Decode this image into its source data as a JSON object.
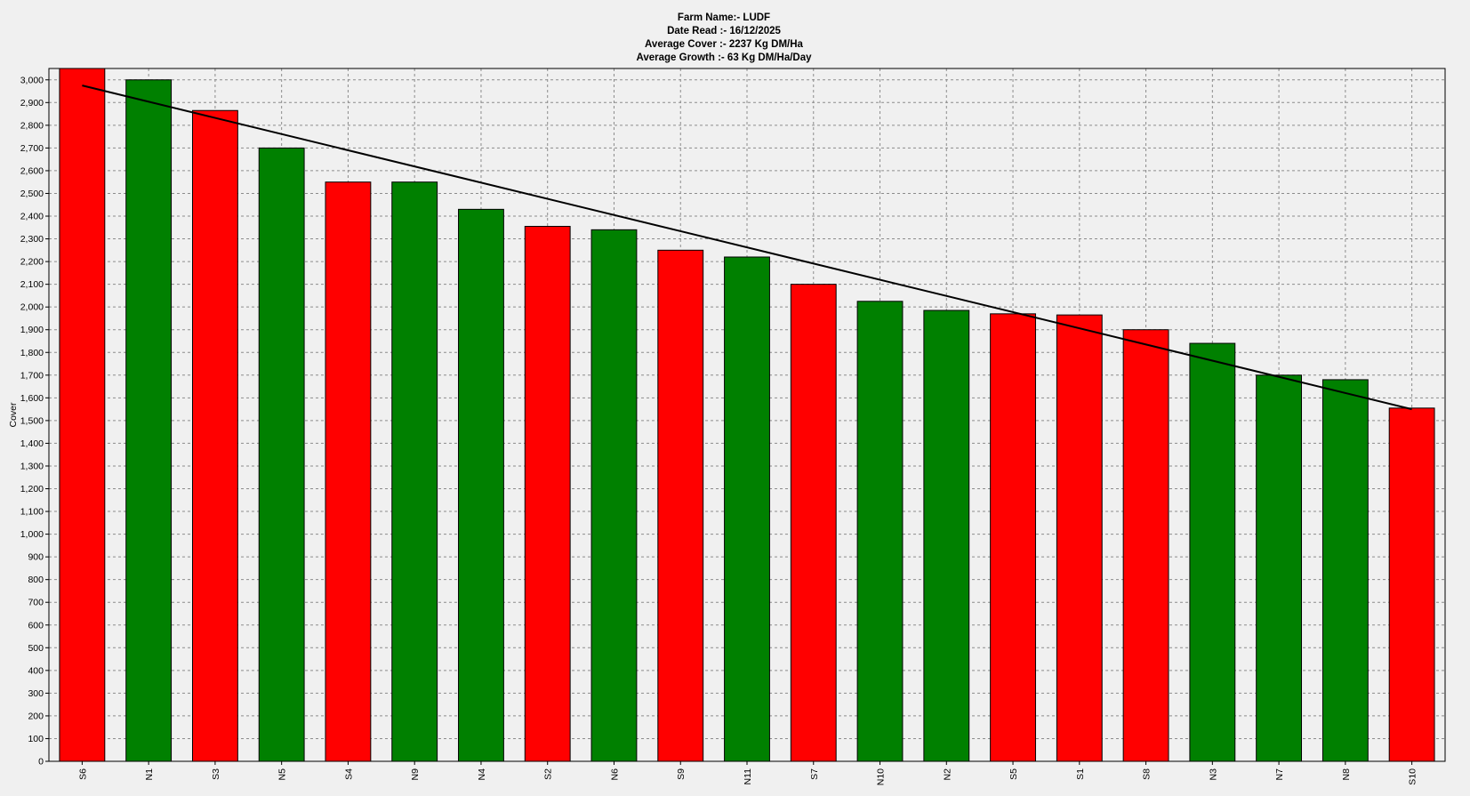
{
  "chart_data": {
    "type": "bar",
    "title_lines": [
      "Farm Name:- LUDF",
      "Date Read :-  16/12/2025",
      "Average Cover :-  2237 Kg DM/Ha",
      "Average Growth :-  63 Kg DM/Ha/Day"
    ],
    "ylabel": "Cover",
    "xlabel": "",
    "ylim": [
      0,
      3050
    ],
    "ytick_step": 100,
    "grid": true,
    "categories": [
      "S6",
      "N1",
      "S3",
      "N5",
      "S4",
      "N9",
      "N4",
      "S2",
      "N6",
      "S9",
      "N11",
      "S7",
      "N10",
      "N2",
      "S5",
      "S1",
      "S8",
      "N3",
      "N7",
      "N8",
      "S10"
    ],
    "values": [
      3050,
      3000,
      2865,
      2700,
      2550,
      2550,
      2430,
      2355,
      2340,
      2250,
      2220,
      2100,
      2025,
      1985,
      1970,
      1965,
      1900,
      1840,
      1700,
      1680,
      1555
    ],
    "bar_colors": [
      "#ff0000",
      "#008000",
      "#ff0000",
      "#008000",
      "#ff0000",
      "#008000",
      "#008000",
      "#ff0000",
      "#008000",
      "#ff0000",
      "#008000",
      "#ff0000",
      "#008000",
      "#008000",
      "#ff0000",
      "#ff0000",
      "#ff0000",
      "#008000",
      "#008000",
      "#008000",
      "#ff0000"
    ],
    "trend_line": {
      "start": {
        "category": "S6",
        "value": 2975
      },
      "end": {
        "category": "S10",
        "value": 1550
      },
      "color": "#000000"
    },
    "background": "#f0f0f0",
    "plot_background": "#f0f0f0"
  }
}
